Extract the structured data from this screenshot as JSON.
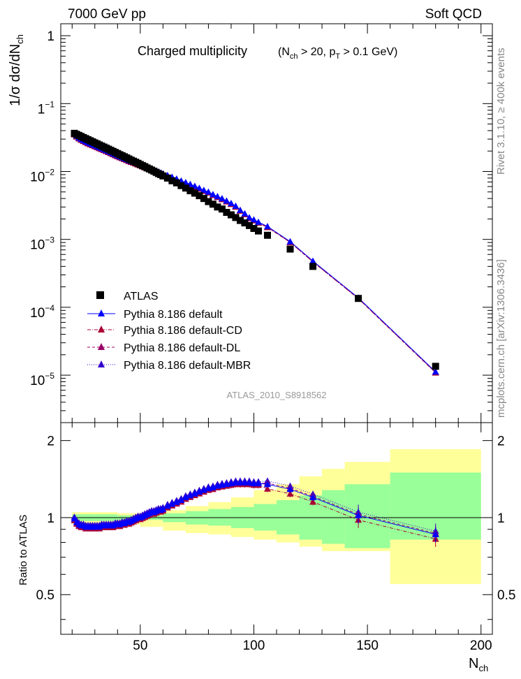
{
  "header": {
    "energy_label": "7000 GeV pp",
    "process_label": "Soft QCD",
    "title_main": "Charged multiplicity",
    "title_cond_open": "(N",
    "title_cond_sub1": "ch",
    "title_cond_mid": " > 20, p",
    "title_cond_sub2": "T",
    "title_cond_end": " > 0.1 GeV)",
    "analysis_id": "ATLAS_2010_S8918562",
    "side_rivet": "Rivet 3.1.10, ≥ 400k events",
    "side_mcplots": "mcplots.cern.ch [arXiv:1306.3436]"
  },
  "axes": {
    "ylabel_main": "1/σ dσ/dN",
    "ylabel_main_sub": "ch",
    "ylabel_ratio": "Ratio to ATLAS",
    "xlabel": "N",
    "xlabel_sub": "ch",
    "x_ticks": [
      "50",
      "100",
      "150",
      "200"
    ],
    "main_y_ticks": [
      "10",
      "10",
      "10",
      "10",
      "1"
    ],
    "main_y_exps": [
      "−5",
      "−4",
      "−3",
      "−2",
      "−1"
    ],
    "ratio_y_ticks": [
      "0.5",
      "1",
      "2"
    ]
  },
  "legend": {
    "atlas": "ATLAS",
    "default": "Pythia 8.186 default",
    "cd": "Pythia 8.186 default-CD",
    "dl": "Pythia 8.186 default-DL",
    "mbr": "Pythia 8.186 default-MBR"
  },
  "chart_data": {
    "type": "scatter",
    "x_range": [
      15,
      205
    ],
    "main_y_range": [
      2e-06,
      1.5
    ],
    "main_y_scale": "log",
    "ratio_y_range": [
      0.35,
      2.35
    ],
    "ratio_y_scale": "log",
    "legend_position": "bottom-left",
    "colors": {
      "atlas": "#000000",
      "default": "#0000ff",
      "cd": "#aa0033",
      "dl": "#990066",
      "mbr": "#3300cc",
      "band_inner": "#99ff99",
      "band_outer": "#ffff99"
    },
    "atlas": {
      "x": [
        21,
        22,
        23,
        24,
        25,
        26,
        27,
        28,
        29,
        30,
        31,
        32,
        33,
        34,
        35,
        36,
        37,
        38,
        39,
        40,
        41,
        42,
        43,
        44,
        45,
        46,
        47,
        48,
        49,
        50,
        51,
        52,
        53,
        54,
        55,
        56,
        57,
        58,
        59,
        60,
        62,
        64,
        66,
        68,
        70,
        72,
        74,
        76,
        78,
        80,
        82,
        84,
        86,
        88,
        90,
        92,
        94,
        96,
        98,
        100,
        102,
        106,
        116,
        126,
        146,
        180
      ],
      "y": [
        0.0365,
        0.0352,
        0.034,
        0.0328,
        0.0316,
        0.0305,
        0.0294,
        0.0284,
        0.0274,
        0.0264,
        0.0255,
        0.0246,
        0.0237,
        0.0229,
        0.0221,
        0.0213,
        0.0205,
        0.0198,
        0.0191,
        0.0184,
        0.0177,
        0.0171,
        0.0165,
        0.0159,
        0.0153,
        0.0147,
        0.0142,
        0.0137,
        0.0132,
        0.0127,
        0.0122,
        0.0118,
        0.0113,
        0.0109,
        0.0105,
        0.0101,
        0.0097,
        0.0093,
        0.009,
        0.0086,
        0.008,
        0.0073,
        0.0068,
        0.0062,
        0.0057,
        0.0052,
        0.0048,
        0.0044,
        0.004,
        0.0036,
        0.0033,
        0.003,
        0.0028,
        0.0025,
        0.0023,
        0.0021,
        0.0019,
        0.00175,
        0.0016,
        0.00145,
        0.00133,
        0.00115,
        0.00072,
        0.0004,
        0.000135,
        1.35e-05
      ]
    },
    "mc_main": {
      "x": [
        21,
        22,
        23,
        24,
        25,
        26,
        27,
        28,
        29,
        30,
        31,
        32,
        33,
        34,
        35,
        36,
        37,
        38,
        39,
        40,
        41,
        42,
        43,
        44,
        45,
        46,
        47,
        48,
        49,
        50,
        51,
        52,
        53,
        54,
        55,
        56,
        57,
        58,
        59,
        60,
        62,
        64,
        66,
        68,
        70,
        72,
        74,
        76,
        78,
        80,
        82,
        84,
        86,
        88,
        90,
        92,
        94,
        96,
        98,
        100,
        102,
        106,
        116,
        126,
        146,
        180
      ],
      "y": [
        0.036,
        0.0335,
        0.0315,
        0.03,
        0.0288,
        0.0277,
        0.0267,
        0.0258,
        0.025,
        0.0242,
        0.0234,
        0.0226,
        0.0219,
        0.0212,
        0.0205,
        0.0198,
        0.0191,
        0.0184,
        0.0178,
        0.0172,
        0.0166,
        0.0161,
        0.0156,
        0.0151,
        0.0146,
        0.0142,
        0.0138,
        0.0134,
        0.013,
        0.0126,
        0.0122,
        0.0118,
        0.0115,
        0.0112,
        0.0109,
        0.0105,
        0.0102,
        0.0099,
        0.0096,
        0.0093,
        0.0088,
        0.0083,
        0.0078,
        0.0073,
        0.0069,
        0.0065,
        0.0061,
        0.0057,
        0.0053,
        0.005,
        0.0046,
        0.0043,
        0.004,
        0.0037,
        0.0034,
        0.0031,
        0.0027,
        0.0024,
        0.0021,
        0.00195,
        0.0018,
        0.00155,
        0.00093,
        0.00048,
        0.000138,
        1.12e-05
      ]
    },
    "ratio_default": {
      "x": [
        21,
        22,
        23,
        24,
        25,
        26,
        27,
        28,
        29,
        30,
        31,
        32,
        33,
        34,
        35,
        36,
        37,
        38,
        39,
        40,
        41,
        42,
        43,
        44,
        45,
        46,
        47,
        48,
        49,
        50,
        51,
        52,
        53,
        54,
        55,
        56,
        57,
        58,
        59,
        60,
        62,
        64,
        66,
        68,
        70,
        72,
        74,
        76,
        78,
        80,
        82,
        84,
        86,
        88,
        90,
        92,
        94,
        96,
        98,
        100,
        102,
        106,
        116,
        126,
        146,
        180
      ],
      "y": [
        0.99,
        0.96,
        0.94,
        0.93,
        0.93,
        0.92,
        0.92,
        0.92,
        0.92,
        0.92,
        0.92,
        0.92,
        0.93,
        0.93,
        0.93,
        0.93,
        0.93,
        0.93,
        0.94,
        0.94,
        0.94,
        0.95,
        0.95,
        0.96,
        0.96,
        0.97,
        0.98,
        0.99,
        1.0,
        1.0,
        1.01,
        1.02,
        1.03,
        1.04,
        1.05,
        1.05,
        1.06,
        1.07,
        1.07,
        1.08,
        1.11,
        1.13,
        1.15,
        1.17,
        1.2,
        1.22,
        1.24,
        1.26,
        1.28,
        1.3,
        1.31,
        1.33,
        1.34,
        1.35,
        1.36,
        1.37,
        1.37,
        1.37,
        1.37,
        1.36,
        1.36,
        1.35,
        1.29,
        1.2,
        1.02,
        0.86
      ]
    },
    "band_inner": [
      [
        20,
        30,
        1.03,
        0.97
      ],
      [
        30,
        40,
        1.03,
        0.97
      ],
      [
        40,
        50,
        1.02,
        0.98
      ],
      [
        50,
        60,
        1.02,
        0.98
      ],
      [
        60,
        70,
        1.04,
        0.96
      ],
      [
        70,
        80,
        1.06,
        0.94
      ],
      [
        80,
        90,
        1.08,
        0.93
      ],
      [
        90,
        100,
        1.1,
        0.91
      ],
      [
        100,
        110,
        1.13,
        0.89
      ],
      [
        110,
        120,
        1.17,
        0.86
      ],
      [
        120,
        130,
        1.22,
        0.82
      ],
      [
        130,
        140,
        1.28,
        0.79
      ],
      [
        140,
        160,
        1.35,
        0.76
      ],
      [
        160,
        200,
        1.5,
        0.82
      ]
    ],
    "band_outer": [
      [
        20,
        30,
        1.05,
        0.95
      ],
      [
        30,
        40,
        1.05,
        0.95
      ],
      [
        40,
        50,
        1.04,
        0.94
      ],
      [
        50,
        60,
        1.04,
        0.92
      ],
      [
        60,
        70,
        1.07,
        0.89
      ],
      [
        70,
        80,
        1.11,
        0.87
      ],
      [
        80,
        90,
        1.15,
        0.86
      ],
      [
        90,
        100,
        1.2,
        0.84
      ],
      [
        100,
        110,
        1.28,
        0.82
      ],
      [
        110,
        120,
        1.35,
        0.8
      ],
      [
        120,
        130,
        1.45,
        0.77
      ],
      [
        130,
        140,
        1.55,
        0.74
      ],
      [
        140,
        160,
        1.65,
        0.74
      ],
      [
        160,
        200,
        1.85,
        0.55
      ]
    ]
  }
}
